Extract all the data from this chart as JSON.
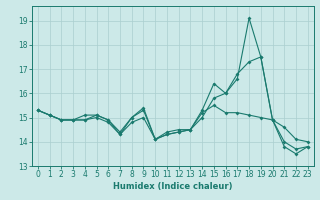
{
  "xlabel": "Humidex (Indice chaleur)",
  "bg_color": "#cce9e8",
  "grid_color": "#aacfcf",
  "line_color": "#1a7a6e",
  "xlim": [
    -0.5,
    23.5
  ],
  "ylim": [
    13.0,
    19.6
  ],
  "yticks": [
    13,
    14,
    15,
    16,
    17,
    18,
    19
  ],
  "xticks": [
    0,
    1,
    2,
    3,
    4,
    5,
    6,
    7,
    8,
    9,
    10,
    11,
    12,
    13,
    14,
    15,
    16,
    17,
    18,
    19,
    20,
    21,
    22,
    23
  ],
  "series1_x": [
    0,
    1,
    2,
    3,
    4,
    5,
    6,
    7,
    8,
    9,
    10,
    11,
    12,
    13,
    14,
    15,
    16,
    17,
    18,
    19,
    20,
    21,
    22,
    23
  ],
  "series1_y": [
    15.3,
    15.1,
    14.9,
    14.9,
    14.9,
    15.1,
    14.9,
    14.4,
    15.0,
    15.3,
    14.1,
    14.3,
    14.4,
    14.5,
    15.3,
    16.4,
    16.0,
    16.6,
    19.1,
    17.5,
    14.9,
    13.8,
    13.5,
    13.8
  ],
  "series2_x": [
    0,
    1,
    2,
    3,
    4,
    5,
    6,
    7,
    8,
    9,
    10,
    11,
    12,
    13,
    14,
    15,
    16,
    17,
    18,
    19,
    20,
    21,
    22,
    23
  ],
  "series2_y": [
    15.3,
    15.1,
    14.9,
    14.9,
    15.1,
    15.1,
    14.9,
    14.3,
    15.0,
    15.4,
    14.1,
    14.4,
    14.5,
    14.5,
    15.2,
    15.5,
    15.2,
    15.2,
    15.1,
    15.0,
    14.9,
    14.6,
    14.1,
    14.0
  ],
  "series3_x": [
    0,
    1,
    2,
    3,
    4,
    5,
    6,
    7,
    8,
    9,
    10,
    11,
    12,
    13,
    14,
    15,
    16,
    17,
    18,
    19,
    20,
    21,
    22,
    23
  ],
  "series3_y": [
    15.3,
    15.1,
    14.9,
    14.9,
    14.9,
    15.0,
    14.8,
    14.3,
    14.8,
    15.0,
    14.1,
    14.3,
    14.4,
    14.5,
    15.0,
    15.8,
    16.0,
    16.8,
    17.3,
    17.5,
    14.9,
    14.0,
    13.7,
    13.8
  ],
  "tick_fontsize": 5.5,
  "xlabel_fontsize": 6.0
}
